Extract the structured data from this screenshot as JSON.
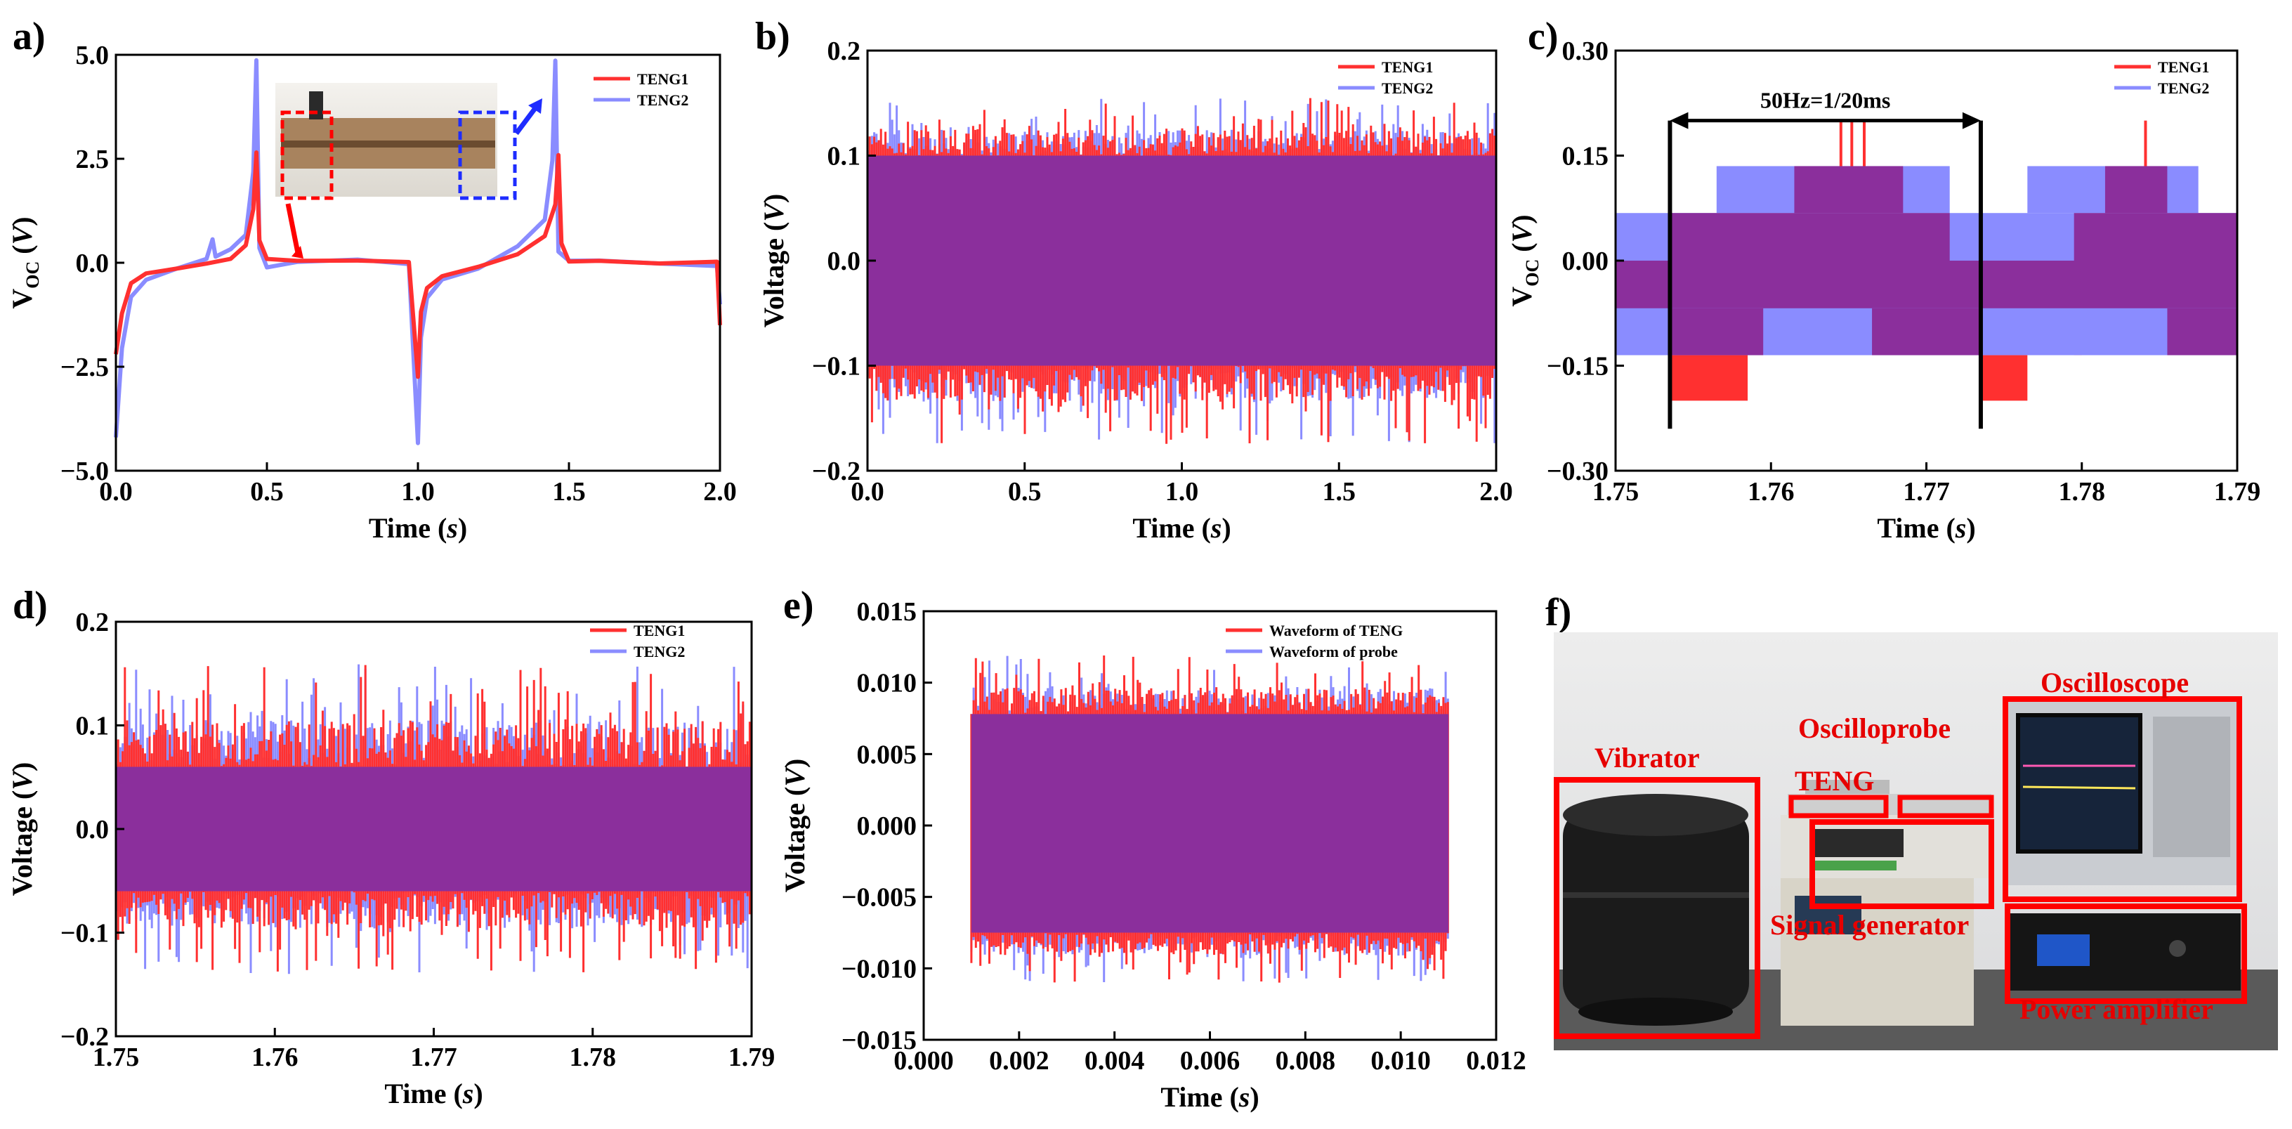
{
  "figure": {
    "colors": {
      "teng1": "#ff3030",
      "teng2": "#8a8cff",
      "overlap": "#8b2f9c",
      "box": "#ff0000",
      "accent_blue": "#1e2cff"
    }
  },
  "chart_data": [
    {
      "panel": "a)",
      "type": "line",
      "xlabel": "Time",
      "xunit": "s",
      "ylabel": "V",
      "ysub": "OC",
      "yunit": "V",
      "xlim": [
        0,
        2
      ],
      "ylim": [
        -5,
        5
      ],
      "xticks": [
        0,
        0.5,
        1,
        1.5,
        2
      ],
      "xtick_labels": [
        "0.0",
        "0.5",
        "1.0",
        "1.5",
        "2.0"
      ],
      "yticks": [
        -5,
        -2.5,
        0,
        2.5,
        5
      ],
      "ytick_labels": [
        "−5.0",
        "−2.5",
        "0.0",
        "2.5",
        "5.0"
      ],
      "legend": [
        "TENG1",
        "TENG2"
      ],
      "series": [
        {
          "name": "TENG1",
          "x": [
            0,
            0.02,
            0.05,
            0.1,
            0.2,
            0.3,
            0.38,
            0.43,
            0.455,
            0.465,
            0.475,
            0.5,
            0.6,
            0.8,
            0.97,
            1.0,
            1.01,
            1.03,
            1.08,
            1.2,
            1.33,
            1.42,
            1.455,
            1.465,
            1.475,
            1.5,
            1.6,
            1.8,
            1.99,
            2.0
          ],
          "y": [
            -2.2,
            -1.2,
            -0.5,
            -0.3,
            -0.15,
            0,
            0.15,
            0.4,
            1.3,
            2.6,
            0.5,
            0.05,
            0.05,
            0.02,
            0.0,
            -2.8,
            -1.2,
            -0.6,
            -0.35,
            -0.1,
            0.2,
            0.6,
            1.4,
            2.6,
            0.5,
            0.05,
            0.05,
            0.0,
            0.0,
            -1.5
          ]
        },
        {
          "name": "TENG2",
          "x": [
            0,
            0.02,
            0.05,
            0.1,
            0.2,
            0.3,
            0.32,
            0.33,
            0.38,
            0.43,
            0.455,
            0.465,
            0.475,
            0.5,
            0.6,
            0.8,
            0.97,
            1.0,
            1.01,
            1.03,
            1.08,
            1.2,
            1.33,
            1.42,
            1.445,
            1.455,
            1.465,
            1.5,
            1.6,
            1.8,
            1.99,
            2.0
          ],
          "y": [
            -4.2,
            -2.0,
            -0.8,
            -0.4,
            -0.2,
            0.1,
            0.6,
            0.2,
            0.3,
            0.7,
            2.2,
            4.9,
            0.3,
            -0.1,
            0.0,
            0.02,
            -0.05,
            -4.3,
            -1.8,
            -0.8,
            -0.4,
            -0.1,
            0.4,
            1.0,
            2.5,
            4.9,
            0.3,
            0.05,
            0.0,
            0.0,
            -0.05,
            -1.0
          ]
        }
      ],
      "inset_photo": "TENG device photo"
    },
    {
      "panel": "b)",
      "type": "line",
      "xlabel": "Time",
      "xunit": "s",
      "ylabel": "Voltage",
      "yunit": "V",
      "xlim": [
        0,
        2
      ],
      "ylim": [
        -0.2,
        0.2
      ],
      "xticks": [
        0,
        0.5,
        1,
        1.5,
        2
      ],
      "xtick_labels": [
        "0.0",
        "0.5",
        "1.0",
        "1.5",
        "2.0"
      ],
      "yticks": [
        -0.2,
        -0.1,
        0,
        0.1,
        0.2
      ],
      "ytick_labels": [
        "−0.2",
        "−0.1",
        "0.0",
        "0.1",
        "0.2"
      ],
      "legend": [
        "TENG1",
        "TENG2"
      ],
      "series": [
        {
          "name": "TENG1",
          "x": [
            0,
            2
          ],
          "y": [
            -0.17,
            0.15
          ]
        },
        {
          "name": "TENG2",
          "x": [
            0,
            2
          ],
          "y": [
            -0.16,
            0.15
          ]
        }
      ],
      "band": {
        "x0": 0,
        "x1": 2,
        "low": -0.1,
        "high": 0.1,
        "peak_low": -0.175,
        "peak_high": 0.155
      }
    },
    {
      "panel": "c)",
      "type": "line",
      "xlabel": "Time",
      "xunit": "s",
      "ylabel": "V",
      "ysub": "OC",
      "yunit": "V",
      "xlim": [
        1.75,
        1.79
      ],
      "ylim": [
        -0.3,
        0.3
      ],
      "xticks": [
        1.75,
        1.76,
        1.77,
        1.78,
        1.79
      ],
      "xtick_labels": [
        "1.75",
        "1.76",
        "1.77",
        "1.78",
        "1.79"
      ],
      "yticks": [
        -0.3,
        -0.15,
        0,
        0.15,
        0.3
      ],
      "ytick_labels": [
        "−0.30",
        "−0.15",
        "0.00",
        "0.15",
        "0.30"
      ],
      "legend": [
        "TENG1",
        "TENG2"
      ],
      "annotation": {
        "text": "50Hz=1/20ms",
        "x0": 1.7535,
        "x1": 1.7735
      },
      "series": [
        {
          "name": "TENG1",
          "x": [
            1.7535,
            1.7635,
            1.7735,
            1.7835
          ],
          "y": [
            -0.2,
            0.2,
            -0.2,
            0.2
          ]
        },
        {
          "name": "TENG2",
          "x": [
            1.7565,
            1.7665,
            1.7765,
            1.7865
          ],
          "y": [
            0.135,
            0.135,
            -0.135,
            0.135
          ]
        }
      ]
    },
    {
      "panel": "d)",
      "type": "line",
      "xlabel": "Time",
      "xunit": "s",
      "ylabel": "Voltage",
      "yunit": "V",
      "xlim": [
        1.75,
        1.79
      ],
      "ylim": [
        -0.2,
        0.2
      ],
      "xticks": [
        1.75,
        1.76,
        1.77,
        1.78,
        1.79
      ],
      "xtick_labels": [
        "1.75",
        "1.76",
        "1.77",
        "1.78",
        "1.79"
      ],
      "yticks": [
        -0.2,
        -0.1,
        0,
        0.1,
        0.2
      ],
      "ytick_labels": [
        "−0.2",
        "−0.1",
        "0.0",
        "0.1",
        "0.2"
      ],
      "legend": [
        "TENG1",
        "TENG2"
      ],
      "series": [
        {
          "name": "TENG1",
          "x": [
            1.75,
            1.79
          ],
          "y": [
            -0.14,
            0.145
          ]
        },
        {
          "name": "TENG2",
          "x": [
            1.75,
            1.79
          ],
          "y": [
            -0.13,
            0.16
          ]
        }
      ],
      "band": {
        "x0": 1.75,
        "x1": 1.79,
        "low": -0.06,
        "high": 0.06,
        "peak_low": -0.14,
        "peak_high": 0.16
      }
    },
    {
      "panel": "e)",
      "type": "line",
      "xlabel": "Time",
      "xunit": "s",
      "ylabel": "Voltage",
      "yunit": "V",
      "xlim": [
        0,
        0.012
      ],
      "ylim": [
        -0.015,
        0.015
      ],
      "xticks": [
        0,
        0.002,
        0.004,
        0.006,
        0.008,
        0.01,
        0.012
      ],
      "xtick_labels": [
        "0.000",
        "0.002",
        "0.004",
        "0.006",
        "0.008",
        "0.010",
        "0.012"
      ],
      "yticks": [
        -0.015,
        -0.01,
        -0.005,
        0,
        0.005,
        0.01,
        0.015
      ],
      "ytick_labels": [
        "−0.015",
        "−0.010",
        "−0.005",
        "0.000",
        "0.005",
        "0.010",
        "0.015"
      ],
      "legend": [
        "Waveform of TENG",
        "Waveform of probe"
      ],
      "series": [
        {
          "name": "Waveform of TENG",
          "x": [
            0.001,
            0.011
          ],
          "y": [
            -0.011,
            0.012
          ]
        },
        {
          "name": "Waveform of probe",
          "x": [
            0.001,
            0.011
          ],
          "y": [
            -0.01,
            0.011
          ]
        }
      ],
      "band": {
        "x0": 0.001,
        "x1": 0.011,
        "low": -0.0075,
        "high": 0.0078,
        "peak_low": -0.011,
        "peak_high": 0.012
      }
    }
  ],
  "photo_f": {
    "panel": "f)",
    "labels": [
      "Vibrator",
      "TENG",
      "Oscilloprobe",
      "Oscilloscope",
      "Signal generator",
      "Power amplifier"
    ]
  }
}
